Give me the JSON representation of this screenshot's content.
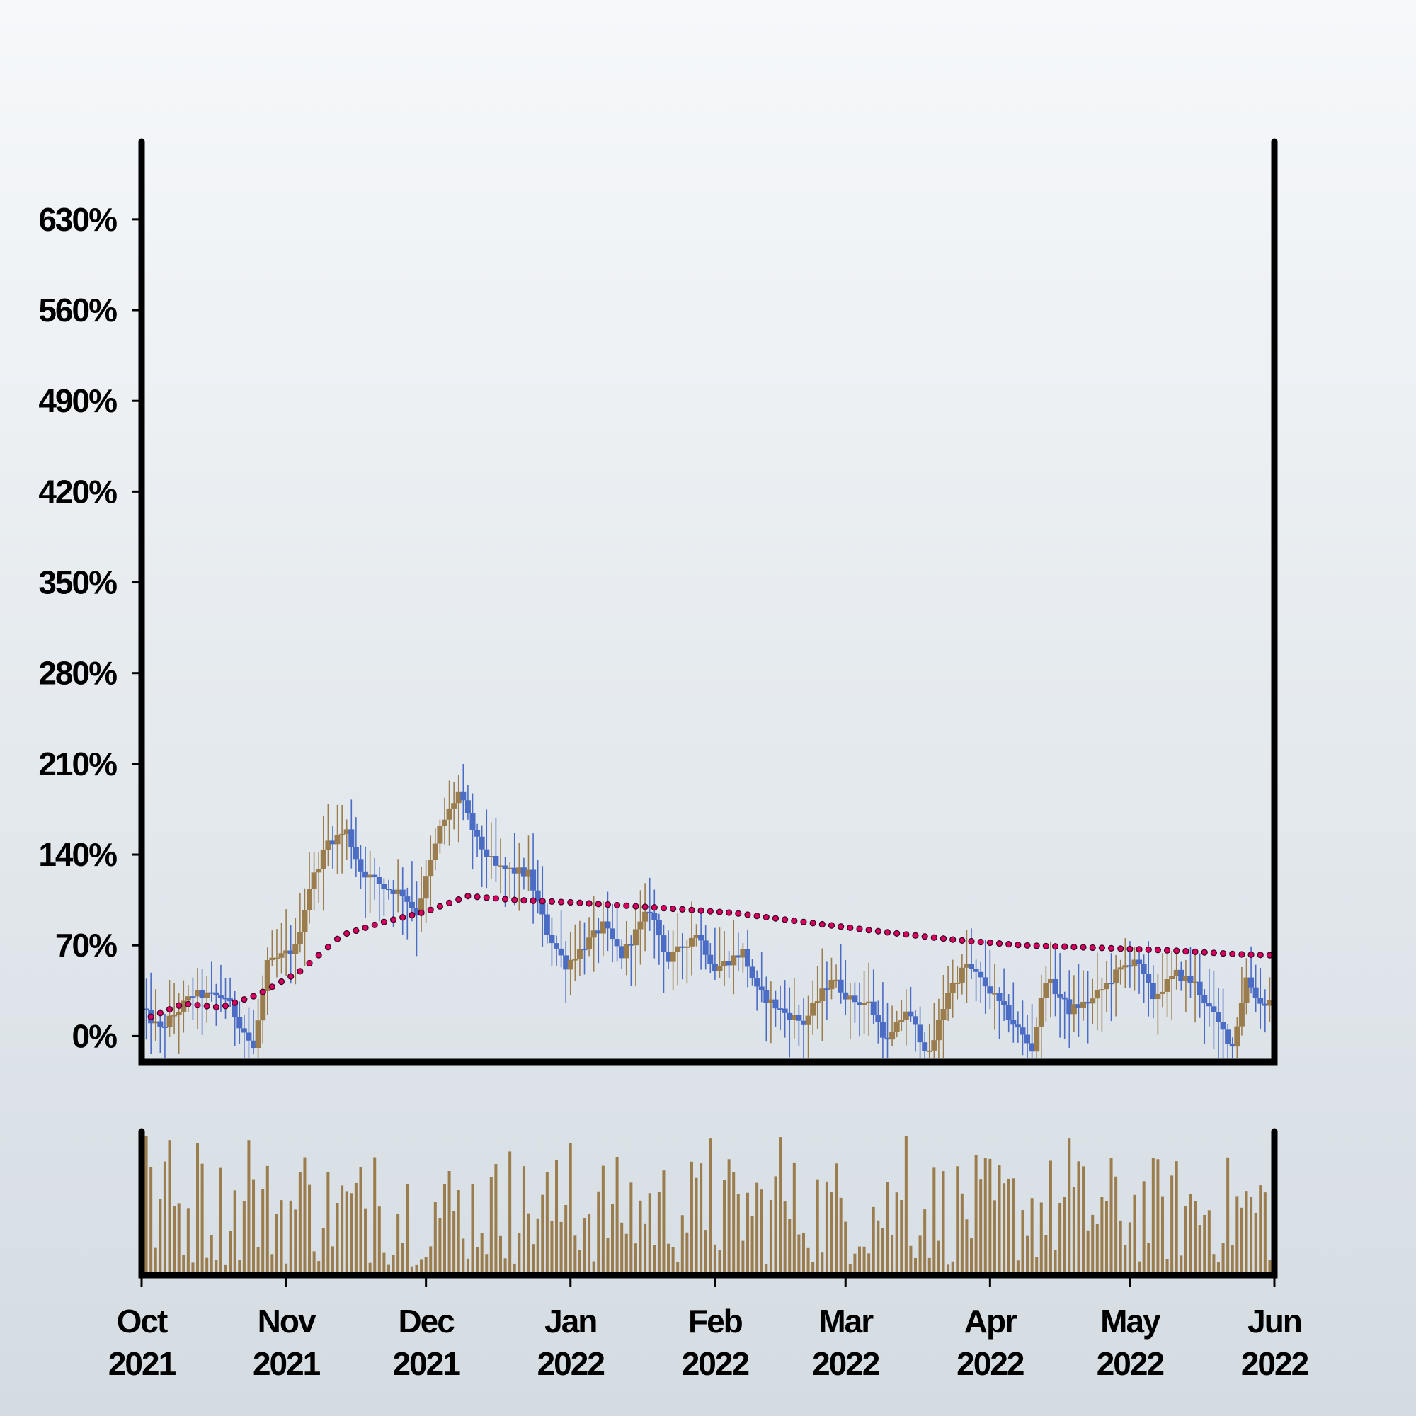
{
  "chart_data": {
    "type": "candlestick",
    "grid": false,
    "price_panel": {
      "y_tick_labels": [
        "0%",
        "70%",
        "140%",
        "210%",
        "280%",
        "350%",
        "420%",
        "490%",
        "560%",
        "630%"
      ],
      "y_tick_values": [
        0,
        70,
        140,
        210,
        280,
        350,
        420,
        490,
        560,
        630
      ],
      "ylim": [
        -20,
        690
      ],
      "colors": {
        "up": "#9b7c4c",
        "down": "#4b6cc4",
        "moving_average": "#d6005f"
      },
      "close_path": [
        {
          "date": "2021-10-01",
          "value": 20
        },
        {
          "date": "2021-10-05",
          "value": 5
        },
        {
          "date": "2021-10-12",
          "value": 32
        },
        {
          "date": "2021-10-19",
          "value": 30
        },
        {
          "date": "2021-10-25",
          "value": -10
        },
        {
          "date": "2021-10-28",
          "value": 55
        },
        {
          "date": "2021-11-03",
          "value": 68
        },
        {
          "date": "2021-11-06",
          "value": 115
        },
        {
          "date": "2021-11-10",
          "value": 150
        },
        {
          "date": "2021-11-14",
          "value": 158
        },
        {
          "date": "2021-11-17",
          "value": 128
        },
        {
          "date": "2021-11-22",
          "value": 115
        },
        {
          "date": "2021-11-26",
          "value": 110
        },
        {
          "date": "2021-11-29",
          "value": 95
        },
        {
          "date": "2021-12-04",
          "value": 160
        },
        {
          "date": "2021-12-08",
          "value": 188
        },
        {
          "date": "2021-12-12",
          "value": 150
        },
        {
          "date": "2021-12-16",
          "value": 130
        },
        {
          "date": "2021-12-23",
          "value": 125
        },
        {
          "date": "2021-12-27",
          "value": 80
        },
        {
          "date": "2021-12-31",
          "value": 55
        },
        {
          "date": "2022-01-04",
          "value": 70
        },
        {
          "date": "2022-01-08",
          "value": 85
        },
        {
          "date": "2022-01-12",
          "value": 62
        },
        {
          "date": "2022-01-18",
          "value": 98
        },
        {
          "date": "2022-01-22",
          "value": 58
        },
        {
          "date": "2022-01-28",
          "value": 80
        },
        {
          "date": "2022-02-01",
          "value": 52
        },
        {
          "date": "2022-02-07",
          "value": 65
        },
        {
          "date": "2022-02-10",
          "value": 35
        },
        {
          "date": "2022-02-15",
          "value": 20
        },
        {
          "date": "2022-02-20",
          "value": 10
        },
        {
          "date": "2022-02-26",
          "value": 45
        },
        {
          "date": "2022-03-02",
          "value": 28
        },
        {
          "date": "2022-03-06",
          "value": 25
        },
        {
          "date": "2022-03-10",
          "value": -5
        },
        {
          "date": "2022-03-14",
          "value": 20
        },
        {
          "date": "2022-03-19",
          "value": -15
        },
        {
          "date": "2022-03-23",
          "value": 35
        },
        {
          "date": "2022-03-27",
          "value": 55
        },
        {
          "date": "2022-04-01",
          "value": 35
        },
        {
          "date": "2022-04-06",
          "value": 10
        },
        {
          "date": "2022-04-10",
          "value": -10
        },
        {
          "date": "2022-04-13",
          "value": 45
        },
        {
          "date": "2022-04-18",
          "value": 20
        },
        {
          "date": "2022-04-23",
          "value": 28
        },
        {
          "date": "2022-04-28",
          "value": 48
        },
        {
          "date": "2022-05-02",
          "value": 60
        },
        {
          "date": "2022-05-06",
          "value": 30
        },
        {
          "date": "2022-05-11",
          "value": 48
        },
        {
          "date": "2022-05-15",
          "value": 40
        },
        {
          "date": "2022-05-19",
          "value": 15
        },
        {
          "date": "2022-05-23",
          "value": -8
        },
        {
          "date": "2022-05-26",
          "value": 45
        },
        {
          "date": "2022-05-29",
          "value": 25
        },
        {
          "date": "2022-06-03",
          "value": 30
        },
        {
          "date": "2022-06-08",
          "value": 5
        },
        {
          "date": "2022-06-11",
          "value": 25
        },
        {
          "date": "2022-06-14",
          "value": 0
        }
      ],
      "moving_average": [
        {
          "date": "2021-10-01",
          "value": 12
        },
        {
          "date": "2021-10-10",
          "value": 25
        },
        {
          "date": "2021-10-18",
          "value": 22
        },
        {
          "date": "2021-10-26",
          "value": 32
        },
        {
          "date": "2021-11-04",
          "value": 50
        },
        {
          "date": "2021-11-13",
          "value": 78
        },
        {
          "date": "2021-11-22",
          "value": 88
        },
        {
          "date": "2021-12-01",
          "value": 96
        },
        {
          "date": "2021-12-10",
          "value": 108
        },
        {
          "date": "2021-12-20",
          "value": 105
        },
        {
          "date": "2022-01-02",
          "value": 103
        },
        {
          "date": "2022-01-20",
          "value": 99
        },
        {
          "date": "2022-02-05",
          "value": 95
        },
        {
          "date": "2022-02-20",
          "value": 88
        },
        {
          "date": "2022-03-10",
          "value": 80
        },
        {
          "date": "2022-03-25",
          "value": 74
        },
        {
          "date": "2022-04-08",
          "value": 70
        },
        {
          "date": "2022-04-25",
          "value": 68
        },
        {
          "date": "2022-05-10",
          "value": 66
        },
        {
          "date": "2022-05-25",
          "value": 63
        },
        {
          "date": "2022-06-14",
          "value": 61
        }
      ]
    },
    "volume_panel": {
      "ylim": [
        0,
        100
      ],
      "color": "#9b7c4c",
      "notable_bars": [
        {
          "date": "2021-10-02",
          "value": 98
        },
        {
          "date": "2021-10-07",
          "value": 94
        },
        {
          "date": "2021-10-13",
          "value": 92
        },
        {
          "date": "2021-10-24",
          "value": 94
        },
        {
          "date": "2021-11-05",
          "value": 82
        },
        {
          "date": "2021-11-20",
          "value": 82
        },
        {
          "date": "2021-12-02",
          "value": 20
        },
        {
          "date": "2021-12-19",
          "value": 86
        },
        {
          "date": "2022-01-01",
          "value": 92
        },
        {
          "date": "2022-01-31",
          "value": 95
        },
        {
          "date": "2022-02-15",
          "value": 96
        },
        {
          "date": "2022-03-14",
          "value": 102
        },
        {
          "date": "2022-04-18",
          "value": 95
        },
        {
          "date": "2022-06-03",
          "value": 98
        }
      ]
    },
    "x_ticks": [
      {
        "date": "2021-10-01",
        "month": "Oct",
        "year": "2021"
      },
      {
        "date": "2021-11-01",
        "month": "Nov",
        "year": "2021"
      },
      {
        "date": "2021-12-01",
        "month": "Dec",
        "year": "2021"
      },
      {
        "date": "2022-01-01",
        "month": "Jan",
        "year": "2022"
      },
      {
        "date": "2022-02-01",
        "month": "Feb",
        "year": "2022"
      },
      {
        "date": "2022-03-01",
        "month": "Mar",
        "year": "2022"
      },
      {
        "date": "2022-04-01",
        "month": "Apr",
        "year": "2022"
      },
      {
        "date": "2022-05-01",
        "month": "May",
        "year": "2022"
      },
      {
        "date": "2022-06-01",
        "month": "Jun",
        "year": "2022"
      }
    ]
  }
}
